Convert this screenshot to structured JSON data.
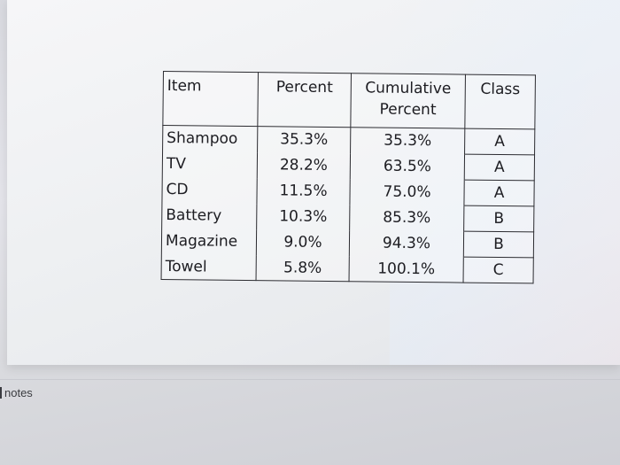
{
  "table": {
    "headers": {
      "item": "Item",
      "percent": "Percent",
      "cumulative_line1": "Cumulative",
      "cumulative_line2": "Percent",
      "class": "Class"
    },
    "rows": [
      {
        "item": "Shampoo",
        "percent": "35.3%",
        "cumulative": "35.3%",
        "class": "A"
      },
      {
        "item": "TV",
        "percent": "28.2%",
        "cumulative": "63.5%",
        "class": "A"
      },
      {
        "item": "CD",
        "percent": "11.5%",
        "cumulative": "75.0%",
        "class": "A"
      },
      {
        "item": "Battery",
        "percent": "10.3%",
        "cumulative": "85.3%",
        "class": "B"
      },
      {
        "item": "Magazine",
        "percent": "9.0%",
        "cumulative": "94.3%",
        "class": "B"
      },
      {
        "item": "Towel",
        "percent": "5.8%",
        "cumulative": "100.1%",
        "class": "C"
      }
    ]
  },
  "footer": {
    "notes_label": "notes"
  }
}
